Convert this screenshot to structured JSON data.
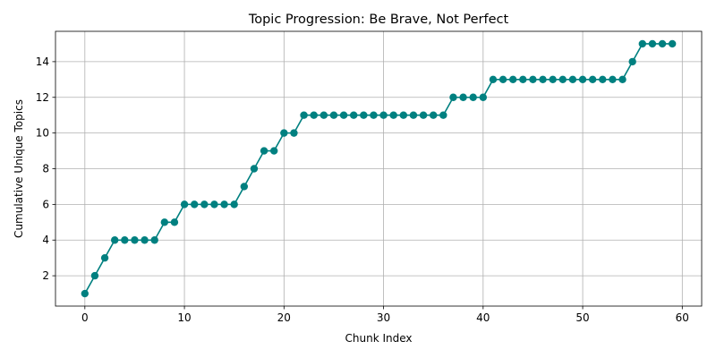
{
  "chart_data": {
    "type": "line",
    "title": "Topic Progression: Be Brave, Not Perfect",
    "xlabel": "Chunk Index",
    "ylabel": "Cumulative Unique Topics",
    "xlim": [
      -2.95,
      61.95
    ],
    "ylim": [
      0.3,
      15.7
    ],
    "xticks": [
      0,
      10,
      20,
      30,
      40,
      50,
      60
    ],
    "yticks": [
      2,
      4,
      6,
      8,
      10,
      12,
      14
    ],
    "grid": true,
    "series": [
      {
        "color": "#008080",
        "marker": "circle",
        "x": [
          0,
          1,
          2,
          3,
          4,
          5,
          6,
          7,
          8,
          9,
          10,
          11,
          12,
          13,
          14,
          15,
          16,
          17,
          18,
          19,
          20,
          21,
          22,
          23,
          24,
          25,
          26,
          27,
          28,
          29,
          30,
          31,
          32,
          33,
          34,
          35,
          36,
          37,
          38,
          39,
          40,
          41,
          42,
          43,
          44,
          45,
          46,
          47,
          48,
          49,
          50,
          51,
          52,
          53,
          54,
          55,
          56,
          57,
          58,
          59
        ],
        "values": [
          1,
          2,
          3,
          4,
          4,
          4,
          4,
          4,
          5,
          5,
          6,
          6,
          6,
          6,
          6,
          6,
          7,
          8,
          9,
          9,
          10,
          10,
          11,
          11,
          11,
          11,
          11,
          11,
          11,
          11,
          11,
          11,
          11,
          11,
          11,
          11,
          11,
          12,
          12,
          12,
          12,
          13,
          13,
          13,
          13,
          13,
          13,
          13,
          13,
          13,
          13,
          13,
          13,
          13,
          13,
          14,
          15,
          15,
          15,
          15
        ]
      }
    ]
  }
}
